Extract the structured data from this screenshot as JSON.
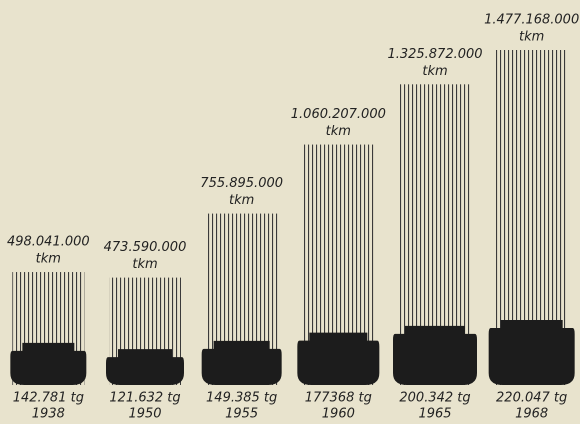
{
  "chart_data": {
    "type": "bar",
    "categories": [
      "1938",
      "1950",
      "1955",
      "1960",
      "1965",
      "1968"
    ],
    "values": [
      498041000,
      473590000,
      755895000,
      1060207000,
      1325872000,
      1477168000
    ],
    "value_labels": [
      "498.041.000",
      "473.590.000",
      "755.895.000",
      "1.060.207.000",
      "1.325.872.000",
      "1.477.168.000"
    ],
    "unit": "tkm",
    "color": "#3a3a3a",
    "tonnage": {
      "values": [
        142781,
        121632,
        149385,
        177368,
        200342,
        220047
      ],
      "value_labels": [
        "142.781 tg",
        "121.632 tg",
        "149.385 tg",
        "177368 tg",
        "200.342 tg",
        "220.047 tg"
      ],
      "color": "#1c1c1c"
    }
  }
}
